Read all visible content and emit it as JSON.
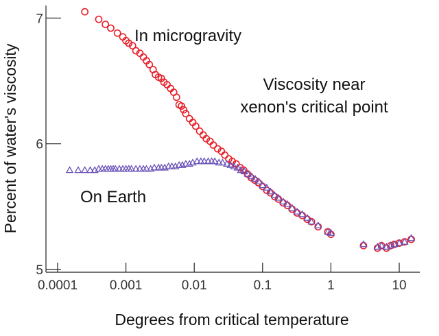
{
  "chart_data": {
    "type": "scatter",
    "title": "",
    "xlabel": "Degrees from critical temperature",
    "ylabel": "Percent of water's viscosity",
    "x_scale": "log",
    "xlim": [
      0.0001,
      20
    ],
    "ylim": [
      5,
      7.1
    ],
    "x_ticks": [
      0.0001,
      0.001,
      0.01,
      0.1,
      1,
      10
    ],
    "x_tick_labels": [
      "0.0001",
      "0.001",
      "0.01",
      "0.1",
      "1",
      "10"
    ],
    "y_ticks": [
      5,
      6,
      7
    ],
    "y_tick_labels": [
      "5",
      "6",
      "7"
    ],
    "grid": false,
    "annotations": [
      "In microgravity",
      "Viscosity near",
      "xenon's critical point",
      "On Earth"
    ],
    "series": [
      {
        "color": "#e8202a",
        "marker": "circle",
        "points": [
          [
            0.00025,
            7.05
          ],
          [
            0.0004,
            6.99
          ],
          [
            0.0005,
            6.95
          ],
          [
            0.0006,
            6.92
          ],
          [
            0.00075,
            6.88
          ],
          [
            0.0009,
            6.85
          ],
          [
            0.001,
            6.82
          ],
          [
            0.0011,
            6.8
          ],
          [
            0.00125,
            6.78
          ],
          [
            0.0014,
            6.74
          ],
          [
            0.0016,
            6.72
          ],
          [
            0.0018,
            6.69
          ],
          [
            0.002,
            6.66
          ],
          [
            0.0022,
            6.63
          ],
          [
            0.0025,
            6.59
          ],
          [
            0.0027,
            6.55
          ],
          [
            0.003,
            6.53
          ],
          [
            0.0033,
            6.52
          ],
          [
            0.0036,
            6.49
          ],
          [
            0.004,
            6.47
          ],
          [
            0.0045,
            6.44
          ],
          [
            0.005,
            6.41
          ],
          [
            0.0055,
            6.37
          ],
          [
            0.006,
            6.31
          ],
          [
            0.0065,
            6.3
          ],
          [
            0.007,
            6.27
          ],
          [
            0.0075,
            6.24
          ],
          [
            0.0085,
            6.2
          ],
          [
            0.0095,
            6.17
          ],
          [
            0.0105,
            6.14
          ],
          [
            0.012,
            6.1
          ],
          [
            0.0135,
            6.07
          ],
          [
            0.015,
            6.04
          ],
          [
            0.017,
            6.02
          ],
          [
            0.019,
            5.99
          ],
          [
            0.022,
            5.96
          ],
          [
            0.025,
            5.94
          ],
          [
            0.028,
            5.91
          ],
          [
            0.032,
            5.88
          ],
          [
            0.036,
            5.86
          ],
          [
            0.041,
            5.84
          ],
          [
            0.047,
            5.81
          ],
          [
            0.053,
            5.79
          ],
          [
            0.06,
            5.76
          ],
          [
            0.068,
            5.73
          ],
          [
            0.077,
            5.71
          ],
          [
            0.087,
            5.69
          ],
          [
            0.1,
            5.66
          ],
          [
            0.115,
            5.63
          ],
          [
            0.13,
            5.61
          ],
          [
            0.15,
            5.58
          ],
          [
            0.17,
            5.56
          ],
          [
            0.2,
            5.53
          ],
          [
            0.23,
            5.51
          ],
          [
            0.27,
            5.48
          ],
          [
            0.32,
            5.45
          ],
          [
            0.38,
            5.43
          ],
          [
            0.45,
            5.4
          ],
          [
            0.52,
            5.38
          ],
          [
            0.65,
            5.34
          ],
          [
            0.9,
            5.3
          ],
          [
            1.0,
            5.28
          ],
          [
            3.0,
            5.19
          ],
          [
            4.8,
            5.17
          ],
          [
            5.5,
            5.19
          ],
          [
            6.5,
            5.17
          ],
          [
            7.5,
            5.19
          ],
          [
            8.5,
            5.2
          ],
          [
            10,
            5.21
          ],
          [
            12,
            5.22
          ],
          [
            15,
            5.24
          ]
        ]
      },
      {
        "color": "#6a52b8",
        "marker": "triangle",
        "points": [
          [
            0.00015,
            5.79
          ],
          [
            0.0002,
            5.79
          ],
          [
            0.00025,
            5.79
          ],
          [
            0.0003,
            5.79
          ],
          [
            0.00035,
            5.79
          ],
          [
            0.0004,
            5.8
          ],
          [
            0.00045,
            5.8
          ],
          [
            0.0005,
            5.8
          ],
          [
            0.00055,
            5.8
          ],
          [
            0.0006,
            5.8
          ],
          [
            0.00065,
            5.8
          ],
          [
            0.0007,
            5.8
          ],
          [
            0.0008,
            5.8
          ],
          [
            0.0009,
            5.8
          ],
          [
            0.001,
            5.8
          ],
          [
            0.0011,
            5.8
          ],
          [
            0.0012,
            5.8
          ],
          [
            0.0014,
            5.8
          ],
          [
            0.0016,
            5.8
          ],
          [
            0.0018,
            5.8
          ],
          [
            0.002,
            5.8
          ],
          [
            0.0023,
            5.8
          ],
          [
            0.0026,
            5.81
          ],
          [
            0.003,
            5.81
          ],
          [
            0.0033,
            5.81
          ],
          [
            0.0037,
            5.81
          ],
          [
            0.0042,
            5.82
          ],
          [
            0.0047,
            5.82
          ],
          [
            0.0053,
            5.82
          ],
          [
            0.006,
            5.83
          ],
          [
            0.0067,
            5.83
          ],
          [
            0.0075,
            5.84
          ],
          [
            0.0085,
            5.84
          ],
          [
            0.0095,
            5.85
          ],
          [
            0.011,
            5.86
          ],
          [
            0.0125,
            5.86
          ],
          [
            0.014,
            5.86
          ],
          [
            0.016,
            5.86
          ],
          [
            0.018,
            5.86
          ],
          [
            0.02,
            5.86
          ],
          [
            0.023,
            5.85
          ],
          [
            0.026,
            5.85
          ],
          [
            0.03,
            5.84
          ],
          [
            0.034,
            5.83
          ],
          [
            0.038,
            5.82
          ],
          [
            0.043,
            5.81
          ],
          [
            0.048,
            5.79
          ],
          [
            0.054,
            5.78
          ],
          [
            0.061,
            5.76
          ],
          [
            0.069,
            5.74
          ],
          [
            0.078,
            5.72
          ],
          [
            0.088,
            5.7
          ],
          [
            0.1,
            5.67
          ],
          [
            0.115,
            5.65
          ],
          [
            0.13,
            5.62
          ],
          [
            0.15,
            5.59
          ],
          [
            0.17,
            5.57
          ],
          [
            0.2,
            5.54
          ],
          [
            0.23,
            5.52
          ],
          [
            0.27,
            5.49
          ],
          [
            0.32,
            5.46
          ],
          [
            0.38,
            5.44
          ],
          [
            0.45,
            5.41
          ],
          [
            0.52,
            5.38
          ],
          [
            0.65,
            5.35
          ],
          [
            0.9,
            5.3
          ],
          [
            1.0,
            5.29
          ],
          [
            3.0,
            5.2
          ],
          [
            4.8,
            5.18
          ],
          [
            5.5,
            5.19
          ],
          [
            6.5,
            5.18
          ],
          [
            7.5,
            5.19
          ],
          [
            8.5,
            5.2
          ],
          [
            10,
            5.21
          ],
          [
            12,
            5.22
          ],
          [
            15,
            5.25
          ]
        ]
      }
    ]
  }
}
